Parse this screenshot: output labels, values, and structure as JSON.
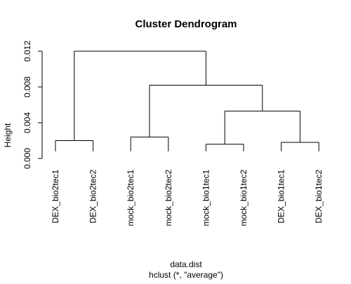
{
  "chart_data": {
    "type": "dendrogram",
    "title": "Cluster Dendrogram",
    "xlabel": "data.dist",
    "subtitle": "hclust (*, \"average\")",
    "ylabel": "Height",
    "ylim": [
      0,
      0.012
    ],
    "yticks": [
      0.0,
      0.004,
      0.008,
      0.012
    ],
    "ytick_labels": [
      "0.000",
      "0.004",
      "0.008",
      "0.012"
    ],
    "leaves": [
      "DEX_bio2tec1",
      "DEX_bio2tec2",
      "mock_bio2tec1",
      "mock_bio2tec2",
      "mock_bio1tec1",
      "mock_bio1tec2",
      "DEX_bio1tec1",
      "DEX_bio1tec2"
    ],
    "leaf_height": 0.0008,
    "merges": [
      {
        "left": "L1",
        "right": "L2",
        "height": 0.002
      },
      {
        "left": "L3",
        "right": "L4",
        "height": 0.0024
      },
      {
        "left": "L5",
        "right": "L6",
        "height": 0.0016
      },
      {
        "left": "L7",
        "right": "L8",
        "height": 0.0018
      },
      {
        "left": "M3",
        "right": "M4",
        "height": 0.0053
      },
      {
        "left": "M2",
        "right": "M5",
        "height": 0.0082
      },
      {
        "left": "M1",
        "right": "M6",
        "height": 0.012
      }
    ]
  }
}
